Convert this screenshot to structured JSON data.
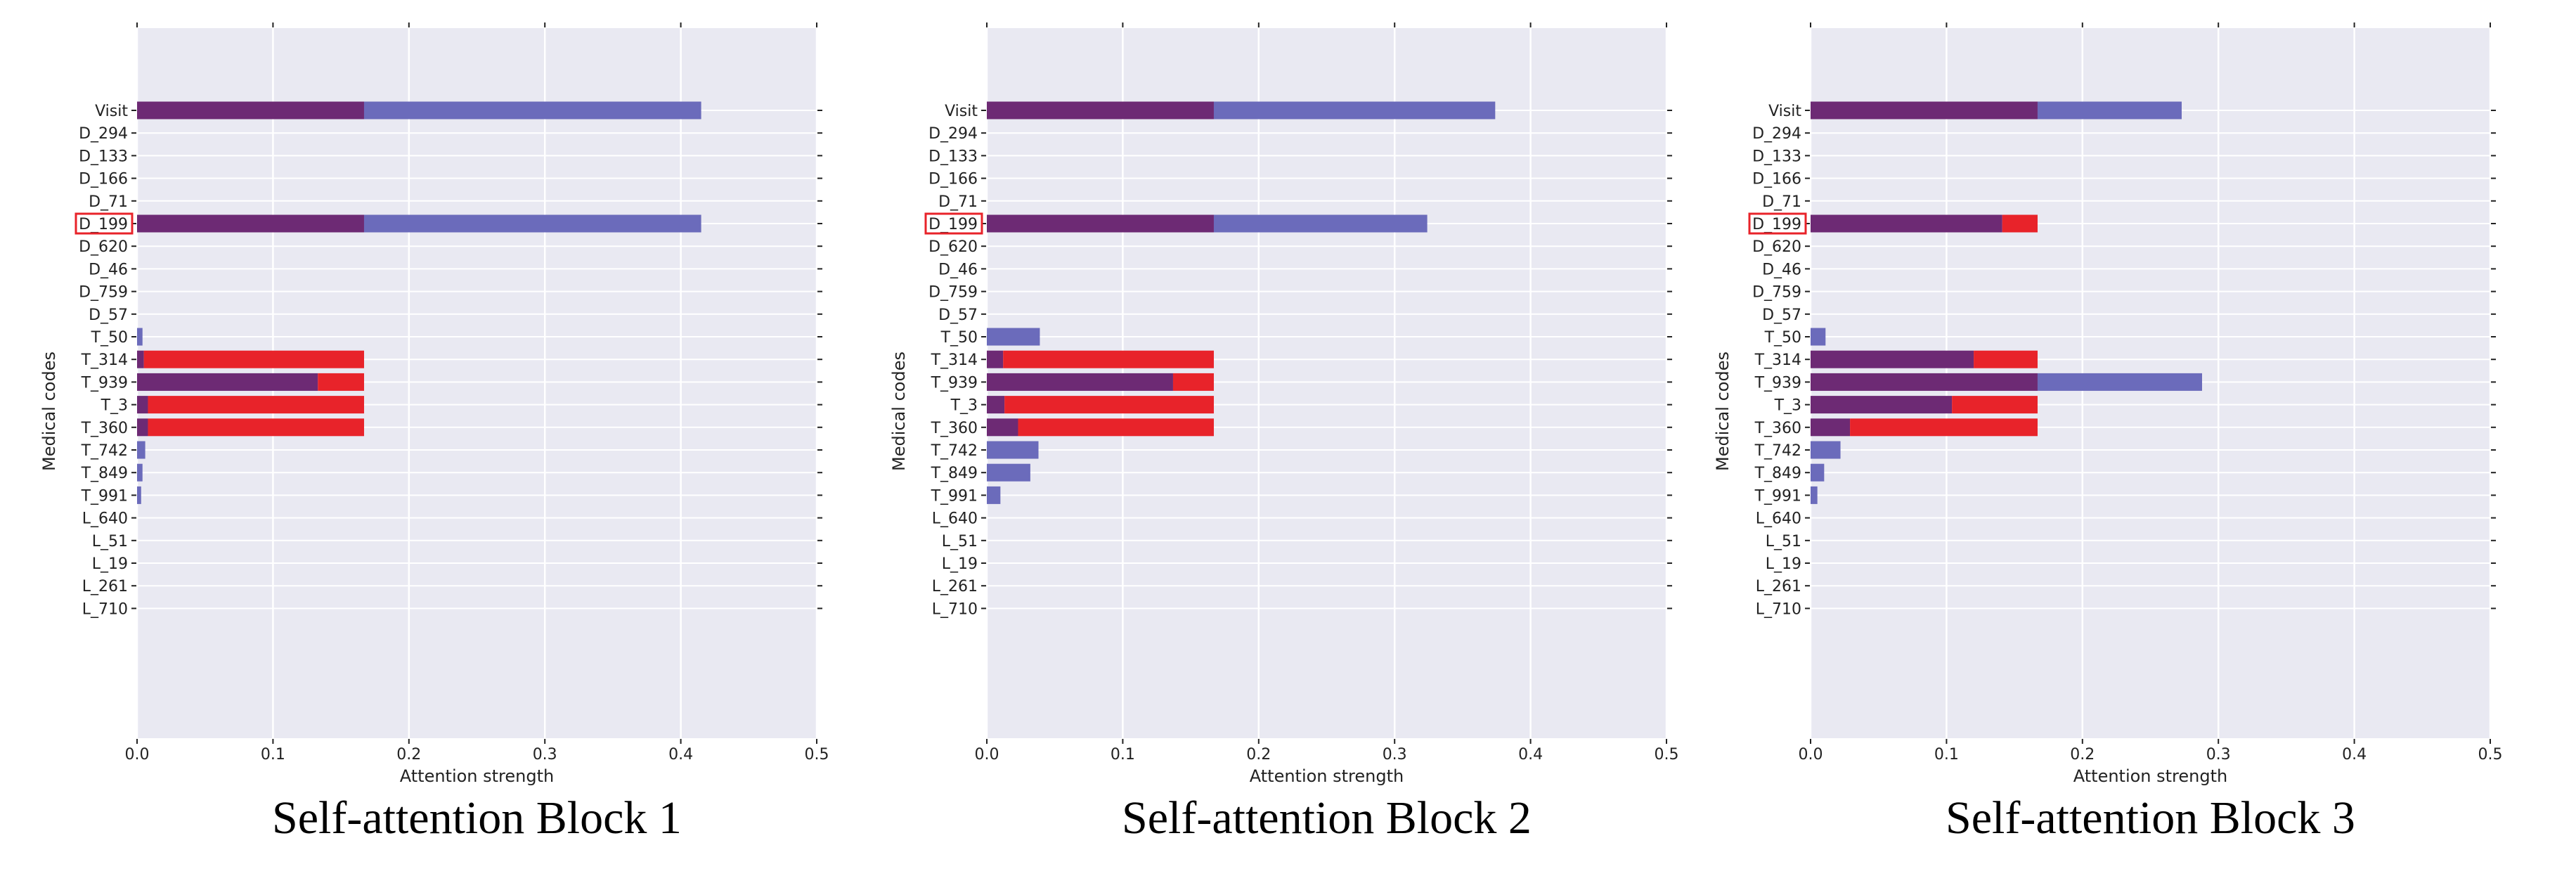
{
  "colors": {
    "panel_background": "#e9e9f2",
    "grid": "#ffffff",
    "primary": "#6d2a74",
    "secondary": "#6b6bbb",
    "highlight": "#e8232a",
    "highlight_box": "#e8232a"
  },
  "chart_data": [
    {
      "type": "bar",
      "orientation": "horizontal",
      "stacked": true,
      "caption": "Self-attention Block 1",
      "xlabel": "Attention strength",
      "ylabel": "Medical codes",
      "xlim": [
        0.0,
        0.5
      ],
      "xticks": [
        "0.0",
        "0.1",
        "0.2",
        "0.3",
        "0.4",
        "0.5"
      ],
      "grid": true,
      "highlighted_category": "D_199",
      "categories": [
        "Visit",
        "D_294",
        "D_133",
        "D_166",
        "D_71",
        "D_199",
        "D_620",
        "D_46",
        "D_759",
        "D_57",
        "T_50",
        "T_314",
        "T_939",
        "T_3",
        "T_360",
        "T_742",
        "T_849",
        "T_991",
        "L_640",
        "L_51",
        "L_19",
        "L_261",
        "L_710"
      ],
      "series": [
        {
          "color": "#6d2a74",
          "values": [
            0.167,
            0,
            0,
            0,
            0,
            0.167,
            0,
            0,
            0,
            0,
            0,
            0.005,
            0.133,
            0.008,
            0.008,
            0,
            0,
            0,
            0,
            0,
            0,
            0,
            0
          ]
        },
        {
          "color": "#6b6bbb",
          "values": [
            0.248,
            0,
            0,
            0,
            0,
            0.248,
            0,
            0,
            0,
            0,
            0.004,
            0,
            0,
            0,
            0,
            0.006,
            0.004,
            0.003,
            0,
            0,
            0,
            0,
            0
          ]
        },
        {
          "color": "#e8232a",
          "values": [
            0,
            0,
            0,
            0,
            0,
            0,
            0,
            0,
            0,
            0,
            0,
            0.162,
            0.034,
            0.159,
            0.159,
            0,
            0,
            0,
            0,
            0,
            0,
            0,
            0
          ]
        }
      ]
    },
    {
      "type": "bar",
      "orientation": "horizontal",
      "stacked": true,
      "caption": "Self-attention Block 2",
      "xlabel": "Attention strength",
      "ylabel": "Medical codes",
      "xlim": [
        0.0,
        0.5
      ],
      "xticks": [
        "0.0",
        "0.1",
        "0.2",
        "0.3",
        "0.4",
        "0.5"
      ],
      "grid": true,
      "highlighted_category": "D_199",
      "categories": [
        "Visit",
        "D_294",
        "D_133",
        "D_166",
        "D_71",
        "D_199",
        "D_620",
        "D_46",
        "D_759",
        "D_57",
        "T_50",
        "T_314",
        "T_939",
        "T_3",
        "T_360",
        "T_742",
        "T_849",
        "T_991",
        "L_640",
        "L_51",
        "L_19",
        "L_261",
        "L_710"
      ],
      "series": [
        {
          "color": "#6d2a74",
          "values": [
            0.167,
            0,
            0,
            0,
            0,
            0.167,
            0,
            0,
            0,
            0,
            0,
            0.012,
            0.137,
            0.013,
            0.023,
            0,
            0,
            0,
            0,
            0,
            0,
            0,
            0
          ]
        },
        {
          "color": "#6b6bbb",
          "values": [
            0.207,
            0,
            0,
            0,
            0,
            0.157,
            0,
            0,
            0,
            0,
            0.039,
            0,
            0,
            0,
            0,
            0.038,
            0.032,
            0.01,
            0,
            0,
            0,
            0,
            0
          ]
        },
        {
          "color": "#e8232a",
          "values": [
            0,
            0,
            0,
            0,
            0,
            0,
            0,
            0,
            0,
            0,
            0,
            0.155,
            0.03,
            0.154,
            0.144,
            0,
            0,
            0,
            0,
            0,
            0,
            0,
            0
          ]
        }
      ]
    },
    {
      "type": "bar",
      "orientation": "horizontal",
      "stacked": true,
      "caption": "Self-attention Block 3",
      "xlabel": "Attention strength",
      "ylabel": "Medical codes",
      "xlim": [
        0.0,
        0.5
      ],
      "xticks": [
        "0.0",
        "0.1",
        "0.2",
        "0.3",
        "0.4",
        "0.5"
      ],
      "grid": true,
      "highlighted_category": "D_199",
      "categories": [
        "Visit",
        "D_294",
        "D_133",
        "D_166",
        "D_71",
        "D_199",
        "D_620",
        "D_46",
        "D_759",
        "D_57",
        "T_50",
        "T_314",
        "T_939",
        "T_3",
        "T_360",
        "T_742",
        "T_849",
        "T_991",
        "L_640",
        "L_51",
        "L_19",
        "L_261",
        "L_710"
      ],
      "series": [
        {
          "color": "#6d2a74",
          "values": [
            0.167,
            0,
            0,
            0,
            0,
            0.141,
            0,
            0,
            0,
            0,
            0,
            0.12,
            0.167,
            0.104,
            0.029,
            0,
            0,
            0,
            0,
            0,
            0,
            0,
            0
          ]
        },
        {
          "color": "#6b6bbb",
          "values": [
            0.106,
            0,
            0,
            0,
            0,
            0,
            0,
            0,
            0,
            0,
            0.011,
            0,
            0.121,
            0,
            0,
            0.022,
            0.01,
            0.005,
            0,
            0,
            0,
            0,
            0
          ]
        },
        {
          "color": "#e8232a",
          "values": [
            0,
            0,
            0,
            0,
            0,
            0.026,
            0,
            0,
            0,
            0,
            0,
            0.047,
            0,
            0.063,
            0.138,
            0,
            0,
            0,
            0,
            0,
            0,
            0,
            0
          ]
        }
      ]
    }
  ]
}
